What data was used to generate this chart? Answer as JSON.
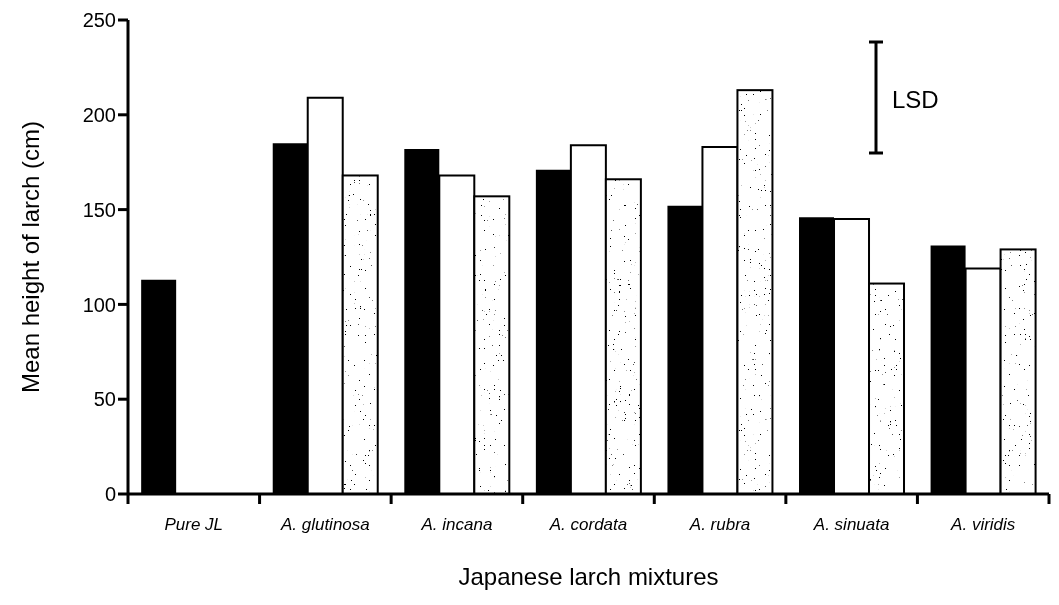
{
  "chart_data": {
    "type": "bar",
    "xlabel": "Japanese larch mixtures",
    "ylabel": "Mean height of larch (cm)",
    "categories": [
      "Pure JL",
      "A. glutinosa",
      "A. incana",
      "A. cordata",
      "A. rubra",
      "A. sinuata",
      "A. viridis"
    ],
    "series": [
      {
        "color": "#000000",
        "values": [
          113,
          185,
          182,
          171,
          152,
          146,
          131
        ]
      },
      {
        "color": "#ffffff",
        "values": [
          null,
          209,
          168,
          184,
          183,
          145,
          119
        ]
      },
      {
        "color": "#ffffff",
        "values": [
          null,
          168,
          157,
          166,
          213,
          111,
          129
        ]
      }
    ],
    "ylim": [
      0,
      250
    ],
    "yticks": [
      0,
      50,
      100,
      150,
      200,
      250
    ],
    "annotations": [
      "LSD"
    ]
  }
}
